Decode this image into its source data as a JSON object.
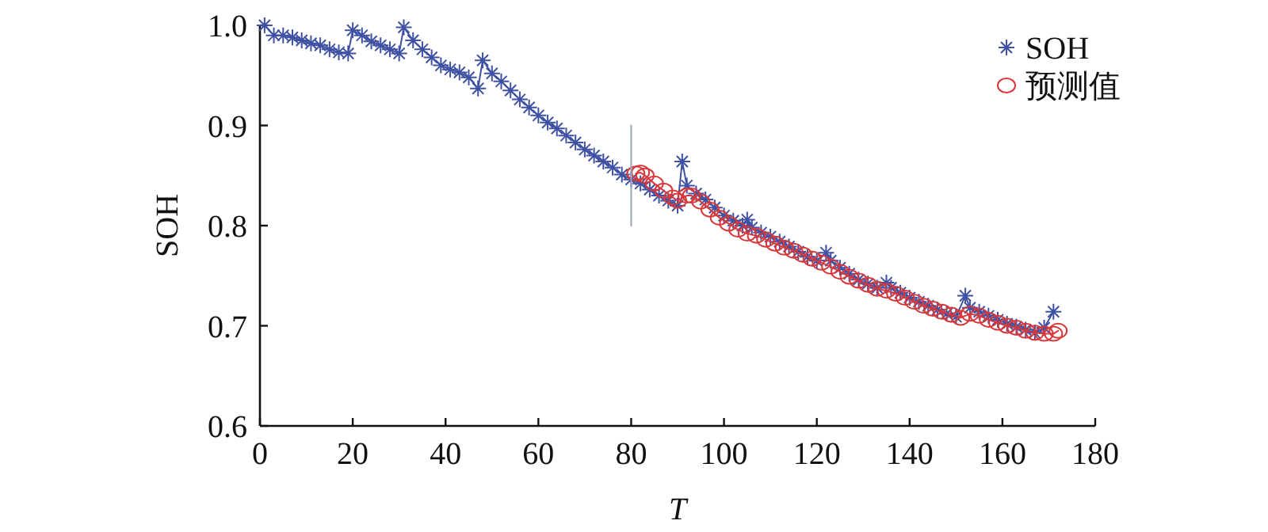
{
  "chart_data": {
    "type": "line",
    "xlabel": "*T*",
    "ylabel": "SOH",
    "xlim": [
      0,
      180
    ],
    "xticks": [
      0,
      20,
      40,
      60,
      80,
      100,
      120,
      140,
      160,
      180
    ],
    "ylim": [
      0.6,
      1.0
    ],
    "yticks": [
      0.6,
      0.7,
      0.8,
      0.9,
      {
        "value": 1.0,
        "label": "1.0"
      }
    ],
    "legend": "top right",
    "grid": false,
    "series": [
      {
        "name": "SOH",
        "color": "#3f51a3",
        "marker": "cross",
        "x": [
          1,
          3,
          5,
          7,
          9,
          11,
          13,
          15,
          17,
          19,
          20,
          22,
          24,
          26,
          28,
          30,
          31,
          33,
          35,
          37,
          39,
          41,
          43,
          45,
          47,
          48,
          50,
          52,
          54,
          56,
          58,
          60,
          62,
          64,
          66,
          68,
          70,
          72,
          74,
          76,
          78,
          80,
          82,
          84,
          86,
          88,
          90,
          91,
          92,
          94,
          96,
          98,
          100,
          102,
          104,
          105,
          106,
          108,
          110,
          112,
          114,
          116,
          118,
          120,
          122,
          123,
          125,
          127,
          129,
          131,
          133,
          135,
          136,
          138,
          140,
          142,
          144,
          146,
          148,
          150,
          152,
          153,
          155,
          157,
          159,
          161,
          163,
          165,
          167,
          169,
          171
        ],
        "values": [
          1.0,
          0.99,
          0.99,
          0.988,
          0.985,
          0.982,
          0.98,
          0.976,
          0.973,
          0.972,
          0.995,
          0.99,
          0.984,
          0.98,
          0.976,
          0.972,
          0.998,
          0.985,
          0.976,
          0.968,
          0.96,
          0.956,
          0.953,
          0.948,
          0.937,
          0.965,
          0.952,
          0.944,
          0.935,
          0.926,
          0.918,
          0.91,
          0.903,
          0.897,
          0.89,
          0.883,
          0.876,
          0.87,
          0.864,
          0.858,
          0.851,
          0.846,
          0.842,
          0.836,
          0.83,
          0.825,
          0.82,
          0.864,
          0.84,
          0.832,
          0.826,
          0.818,
          0.81,
          0.805,
          0.8,
          0.806,
          0.798,
          0.793,
          0.789,
          0.784,
          0.779,
          0.774,
          0.769,
          0.765,
          0.773,
          0.765,
          0.758,
          0.752,
          0.746,
          0.742,
          0.738,
          0.743,
          0.738,
          0.733,
          0.728,
          0.724,
          0.72,
          0.716,
          0.712,
          0.709,
          0.73,
          0.718,
          0.714,
          0.71,
          0.706,
          0.702,
          0.699,
          0.696,
          0.693,
          0.698,
          0.714
        ]
      },
      {
        "name": "预测值",
        "color": "#d9383a",
        "marker": "circle",
        "x": [
          81,
          82,
          83,
          85,
          87,
          89,
          90,
          92,
          93,
          95,
          97,
          99,
          101,
          103,
          105,
          107,
          109,
          111,
          113,
          115,
          117,
          119,
          121,
          123,
          125,
          127,
          129,
          131,
          133,
          135,
          137,
          139,
          141,
          143,
          145,
          147,
          149,
          151,
          153,
          155,
          157,
          159,
          161,
          163,
          165,
          167,
          169,
          171,
          172
        ],
        "values": [
          0.852,
          0.853,
          0.85,
          0.842,
          0.835,
          0.828,
          0.825,
          0.83,
          0.83,
          0.824,
          0.816,
          0.808,
          0.802,
          0.796,
          0.792,
          0.79,
          0.786,
          0.782,
          0.778,
          0.775,
          0.771,
          0.767,
          0.763,
          0.759,
          0.754,
          0.749,
          0.745,
          0.741,
          0.737,
          0.735,
          0.732,
          0.728,
          0.724,
          0.72,
          0.717,
          0.714,
          0.711,
          0.708,
          0.712,
          0.71,
          0.706,
          0.703,
          0.7,
          0.698,
          0.695,
          0.693,
          0.692,
          0.692,
          0.695
        ]
      },
      {
        "type": "line",
        "color": "#9aa3b8",
        "marker": "none",
        "x": [
          80,
          80
        ],
        "values": [
          0.8,
          0.9
        ]
      }
    ]
  }
}
